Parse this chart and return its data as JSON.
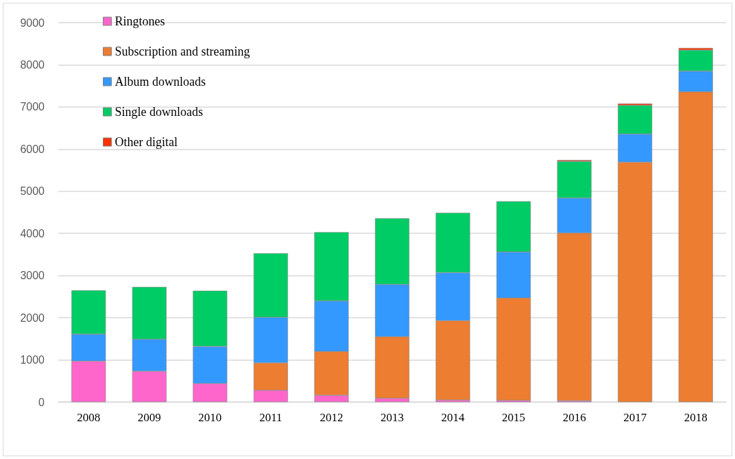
{
  "chart_data": {
    "type": "bar",
    "stacked": true,
    "categories": [
      "2008",
      "2009",
      "2010",
      "2011",
      "2012",
      "2013",
      "2014",
      "2015",
      "2016",
      "2017",
      "2018"
    ],
    "series": [
      {
        "name": "Ringtones",
        "color": "#ff66cc",
        "values": [
          970,
          730,
          440,
          280,
          160,
          90,
          50,
          40,
          30,
          null,
          null
        ]
      },
      {
        "name": "Subscription and streaming",
        "color": "#ed7d31",
        "values": [
          null,
          null,
          null,
          650,
          1040,
          1460,
          1880,
          2430,
          3980,
          5690,
          7360
        ]
      },
      {
        "name": "Album downloads",
        "color": "#3399ff",
        "values": [
          640,
          760,
          880,
          1080,
          1200,
          1240,
          1140,
          1090,
          830,
          670,
          490
        ]
      },
      {
        "name": "Single downloads",
        "color": "#00cc66",
        "values": [
          1040,
          1240,
          1320,
          1520,
          1630,
          1570,
          1420,
          1200,
          870,
          680,
          500
        ]
      },
      {
        "name": "Other digital",
        "color": "#ff3300",
        "values": [
          null,
          null,
          null,
          null,
          null,
          null,
          null,
          null,
          30,
          40,
          50
        ]
      }
    ],
    "ylim": [
      0,
      9000
    ],
    "yticks": [
      0,
      1000,
      2000,
      3000,
      4000,
      5000,
      6000,
      7000,
      8000,
      9000
    ],
    "grid": "y",
    "legend": "top left"
  }
}
